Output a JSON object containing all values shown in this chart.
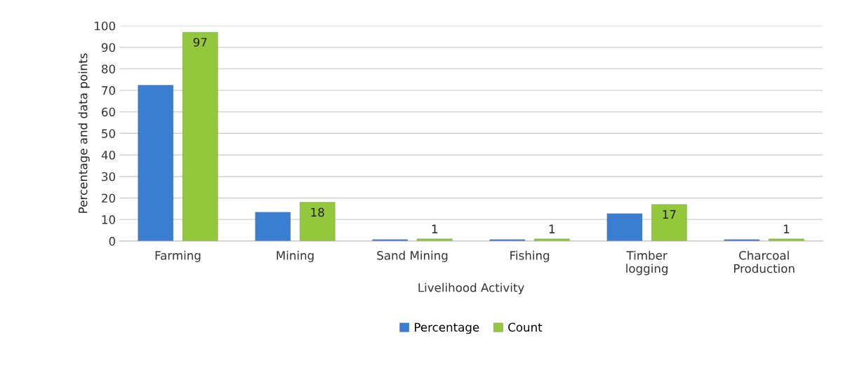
{
  "chart_data": {
    "type": "bar",
    "xlabel": "Livelihood Activity",
    "ylabel": "Percentage and data points",
    "categories": [
      "Farming",
      "Mining",
      "Sand Mining",
      "Fishing",
      "Timber\nlogging",
      "Charcoal\nProduction"
    ],
    "series": [
      {
        "name": "Percentage",
        "color": "#3a7ed2",
        "values": [
          72.4,
          13.4,
          0.7,
          0.7,
          12.7,
          0.7
        ]
      },
      {
        "name": "Count",
        "color": "#94c83c",
        "values": [
          97,
          18,
          1,
          1,
          17,
          1
        ],
        "value_labels": [
          "97",
          "18",
          "1",
          "1",
          "17",
          "1"
        ]
      }
    ],
    "ylim": [
      0,
      100
    ],
    "yticks": [
      0,
      10,
      20,
      30,
      40,
      50,
      60,
      70,
      80,
      90,
      100
    ],
    "grid": "y",
    "legend": "bottom"
  }
}
